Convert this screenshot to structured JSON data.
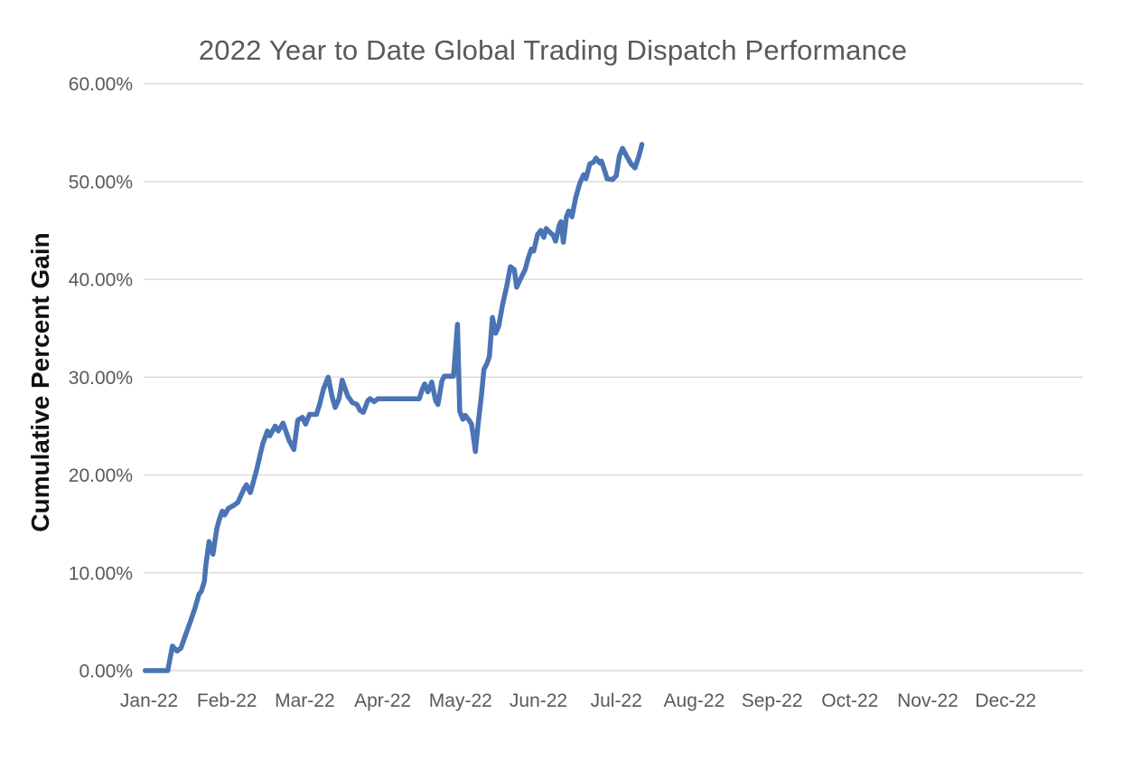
{
  "chart": {
    "title": "2022 Year to Date Global Trading Dispatch Performance",
    "y_axis_title": "Cumulative Percent Gain"
  },
  "chart_data": {
    "type": "line",
    "title": "2022 Year to Date Global Trading Dispatch Performance",
    "xlabel": "",
    "ylabel": "Cumulative Percent Gain",
    "x_tick_labels": [
      "Jan-22",
      "Feb-22",
      "Mar-22",
      "Apr-22",
      "May-22",
      "Jun-22",
      "Jul-22",
      "Aug-22",
      "Sep-22",
      "Oct-22",
      "Nov-22",
      "Dec-22"
    ],
    "y_ticks": [
      0,
      10,
      20,
      30,
      40,
      50,
      60
    ],
    "y_tick_labels": [
      "0.00%",
      "10.00%",
      "20.00%",
      "30.00%",
      "40.00%",
      "50.00%",
      "60.00%"
    ],
    "xlim_months": [
      0,
      12
    ],
    "ylim": [
      0,
      60
    ],
    "grid": "horizontal-only",
    "legend": "none",
    "colors": {
      "line": "#4a74b4",
      "gridline": "#d9d9d9",
      "tick_text": "#595959",
      "title_text": "#595959",
      "y_axis_title_text": "#111111",
      "background": "#ffffff"
    },
    "series": [
      {
        "name": "Cumulative Percent Gain",
        "x_unit": "months since Jan-22 tick (0 = Jan-22, 1 = Feb-22, ...)",
        "y_unit": "percent",
        "points": [
          [
            -0.05,
            0
          ],
          [
            0.24,
            0
          ],
          [
            0.3,
            2.5
          ],
          [
            0.36,
            2.0
          ],
          [
            0.41,
            2.3
          ],
          [
            0.48,
            3.9
          ],
          [
            0.53,
            5.0
          ],
          [
            0.59,
            6.4
          ],
          [
            0.64,
            7.8
          ],
          [
            0.67,
            8.1
          ],
          [
            0.71,
            9.1
          ],
          [
            0.73,
            10.8
          ],
          [
            0.77,
            13.2
          ],
          [
            0.82,
            11.9
          ],
          [
            0.87,
            14.5
          ],
          [
            0.9,
            15.4
          ],
          [
            0.94,
            16.3
          ],
          [
            0.97,
            15.9
          ],
          [
            1.02,
            16.6
          ],
          [
            1.09,
            16.9
          ],
          [
            1.14,
            17.2
          ],
          [
            1.22,
            18.6
          ],
          [
            1.25,
            19.0
          ],
          [
            1.3,
            18.2
          ],
          [
            1.33,
            19.0
          ],
          [
            1.38,
            20.5
          ],
          [
            1.43,
            22.2
          ],
          [
            1.46,
            23.2
          ],
          [
            1.52,
            24.5
          ],
          [
            1.55,
            24.0
          ],
          [
            1.62,
            25.0
          ],
          [
            1.66,
            24.5
          ],
          [
            1.72,
            25.3
          ],
          [
            1.8,
            23.5
          ],
          [
            1.86,
            22.6
          ],
          [
            1.91,
            25.6
          ],
          [
            1.97,
            25.9
          ],
          [
            2.01,
            25.2
          ],
          [
            2.06,
            26.2
          ],
          [
            2.15,
            26.2
          ],
          [
            2.19,
            27.2
          ],
          [
            2.24,
            28.8
          ],
          [
            2.3,
            30.0
          ],
          [
            2.35,
            28.0
          ],
          [
            2.39,
            26.9
          ],
          [
            2.44,
            27.8
          ],
          [
            2.48,
            29.7
          ],
          [
            2.55,
            28.1
          ],
          [
            2.61,
            27.4
          ],
          [
            2.67,
            27.2
          ],
          [
            2.71,
            26.6
          ],
          [
            2.75,
            26.4
          ],
          [
            2.81,
            27.6
          ],
          [
            2.84,
            27.8
          ],
          [
            2.89,
            27.5
          ],
          [
            2.94,
            27.8
          ],
          [
            3.47,
            27.8
          ],
          [
            3.51,
            28.8
          ],
          [
            3.54,
            29.3
          ],
          [
            3.58,
            28.5
          ],
          [
            3.63,
            29.5
          ],
          [
            3.68,
            27.6
          ],
          [
            3.71,
            27.2
          ],
          [
            3.76,
            29.6
          ],
          [
            3.79,
            30.1
          ],
          [
            3.91,
            30.1
          ],
          [
            3.96,
            35.4
          ],
          [
            3.99,
            26.5
          ],
          [
            4.03,
            25.7
          ],
          [
            4.06,
            26.1
          ],
          [
            4.11,
            25.6
          ],
          [
            4.14,
            25.2
          ],
          [
            4.16,
            24.2
          ],
          [
            4.19,
            22.4
          ],
          [
            4.23,
            25.5
          ],
          [
            4.27,
            28.3
          ],
          [
            4.3,
            30.8
          ],
          [
            4.34,
            31.4
          ],
          [
            4.37,
            32.1
          ],
          [
            4.41,
            36.1
          ],
          [
            4.45,
            34.5
          ],
          [
            4.49,
            35.2
          ],
          [
            4.54,
            37.4
          ],
          [
            4.59,
            39.2
          ],
          [
            4.64,
            41.3
          ],
          [
            4.69,
            41.0
          ],
          [
            4.72,
            39.2
          ],
          [
            4.78,
            40.2
          ],
          [
            4.83,
            41.0
          ],
          [
            4.87,
            42.2
          ],
          [
            4.91,
            43.1
          ],
          [
            4.94,
            42.9
          ],
          [
            4.99,
            44.6
          ],
          [
            5.03,
            45.0
          ],
          [
            5.07,
            44.3
          ],
          [
            5.1,
            45.2
          ],
          [
            5.15,
            44.8
          ],
          [
            5.19,
            44.5
          ],
          [
            5.22,
            43.9
          ],
          [
            5.27,
            45.6
          ],
          [
            5.29,
            45.9
          ],
          [
            5.32,
            43.8
          ],
          [
            5.36,
            46.4
          ],
          [
            5.39,
            47.0
          ],
          [
            5.43,
            46.4
          ],
          [
            5.48,
            48.4
          ],
          [
            5.53,
            49.8
          ],
          [
            5.58,
            50.7
          ],
          [
            5.61,
            50.3
          ],
          [
            5.66,
            51.8
          ],
          [
            5.71,
            52.0
          ],
          [
            5.74,
            52.4
          ],
          [
            5.79,
            51.9
          ],
          [
            5.81,
            52.1
          ],
          [
            5.86,
            50.9
          ],
          [
            5.88,
            50.3
          ],
          [
            5.95,
            50.2
          ],
          [
            6.0,
            50.6
          ],
          [
            6.04,
            52.6
          ],
          [
            6.08,
            53.4
          ],
          [
            6.14,
            52.5
          ],
          [
            6.19,
            51.8
          ],
          [
            6.24,
            51.4
          ],
          [
            6.29,
            52.6
          ],
          [
            6.33,
            53.8
          ]
        ]
      }
    ]
  }
}
